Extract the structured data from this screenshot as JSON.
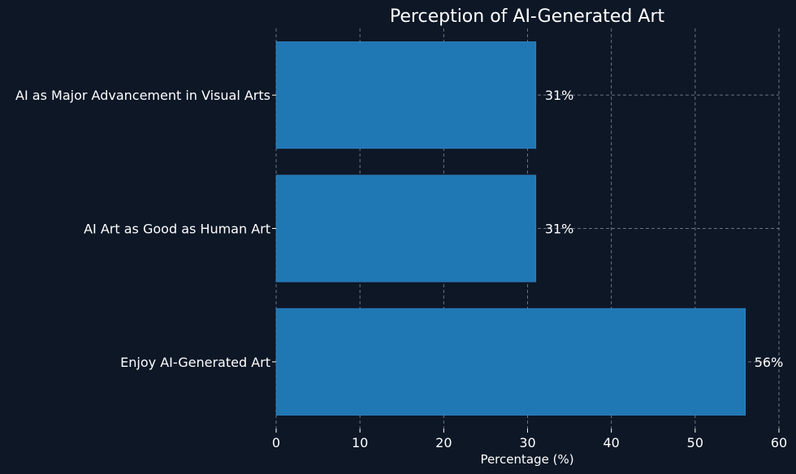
{
  "chart_data": {
    "type": "bar",
    "orientation": "horizontal",
    "title": "Perception of AI-Generated Art",
    "xlabel": "Percentage (%)",
    "ylabel": "",
    "categories": [
      "Enjoy AI-Generated Art",
      "AI Art as Good as Human Art",
      "AI as Major Advancement in Visual Arts"
    ],
    "values": [
      56,
      31,
      31
    ],
    "value_labels": [
      "56%",
      "31%",
      "31%"
    ],
    "xlim": [
      0,
      60
    ],
    "xticks": [
      0,
      10,
      20,
      30,
      40,
      50,
      60
    ],
    "grid": true,
    "colors": {
      "bar": "#1f77b4",
      "background": "#0d1726",
      "text": "#ffffff"
    }
  }
}
